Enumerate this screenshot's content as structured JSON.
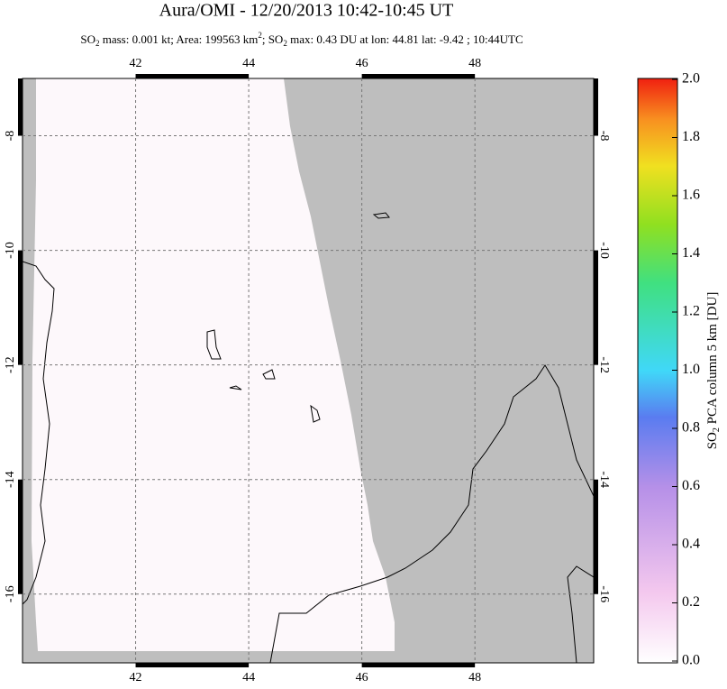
{
  "map": {
    "title": "Aura/OMI - 12/20/2013 10:42-10:45 UT",
    "subtitle": [
      "SO",
      "2",
      " mass: 0.001 kt; Area: 199563 km",
      "2",
      "; SO",
      "2",
      " max: 0.43 DU at lon: 44.81 lat: -9.42 ; 10:44UTC"
    ],
    "lon_range": [
      40,
      50.1
    ],
    "lat_range": [
      -7,
      -17.2
    ],
    "lon_ticks": [
      42,
      44,
      46,
      48
    ],
    "lat_ticks": [
      -8,
      -10,
      -12,
      -14,
      -16
    ],
    "grid": true,
    "colorbar": {
      "label": [
        "SO",
        "2",
        " PCA column 5 km [DU]"
      ],
      "range": [
        0,
        2
      ],
      "ticks": [
        {
          "value": 0,
          "label": "0.0"
        },
        0.2,
        0.4,
        0.6,
        0.8,
        {
          "value": 1,
          "label": "1.0"
        },
        1.2,
        1.4,
        1.6,
        1.8,
        {
          "value": 2,
          "label": "2.0"
        }
      ]
    }
  }
}
